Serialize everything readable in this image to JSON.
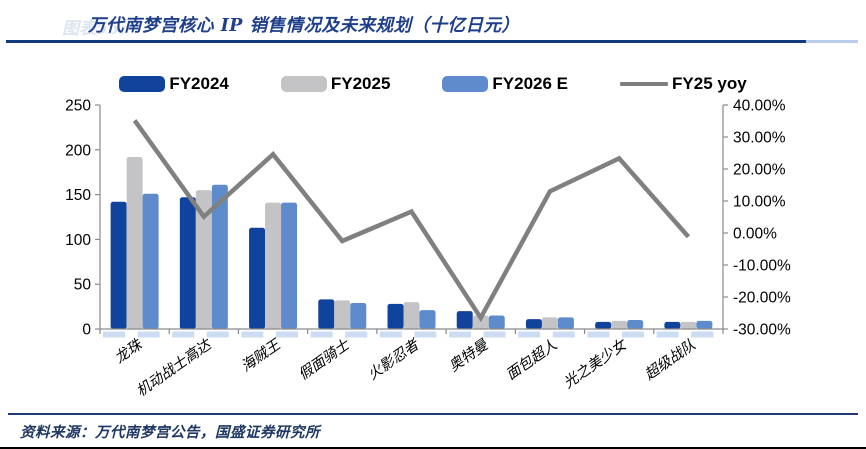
{
  "header": {
    "figure_label": "图表55:",
    "title": "万代南梦宫核心 IP 销售情况及未来规划（十亿日元）"
  },
  "footer": {
    "source": "资料来源：万代南梦宫公告，国盛证券研究所"
  },
  "colors": {
    "title_navy": "#1f3f8a",
    "rule_navy": "#123a7d",
    "fy2024_bar": "#10449c",
    "fy2025_bar": "#c4c4c6",
    "fy2026_bar": "#5e8bcb",
    "yoy_line": "#808080",
    "axis_gray": "#8a8a8a",
    "highlight_blue": "#cbdcf3"
  },
  "chart_data": {
    "type": "bar",
    "title": "万代南梦宫核心 IP 销售情况及未来规划（十亿日元）",
    "categories": [
      "龙珠",
      "机动战士高达",
      "海贼王",
      "假面骑士",
      "火影忍者",
      "奥特曼",
      "面包超人",
      "光之美少女",
      "超级战队"
    ],
    "series": [
      {
        "name": "FY2024",
        "type": "bar",
        "axis": "left",
        "color": "#10449c",
        "values": [
          142,
          147,
          113,
          33,
          28,
          20,
          11,
          8,
          8
        ]
      },
      {
        "name": "FY2025",
        "type": "bar",
        "axis": "left",
        "color": "#c4c4c6",
        "values": [
          192,
          155,
          141,
          32,
          30,
          15,
          13,
          9,
          8
        ]
      },
      {
        "name": "FY2026 E",
        "type": "bar",
        "axis": "left",
        "color": "#5e8bcb",
        "values": [
          151,
          161,
          141,
          29,
          21,
          15,
          13,
          10,
          9
        ]
      },
      {
        "name": "FY25 yoy",
        "type": "line",
        "axis": "right",
        "color": "#808080",
        "values": [
          35.2,
          5.1,
          24.6,
          -2.5,
          6.7,
          -26.5,
          13.0,
          23.3,
          -1.2
        ]
      }
    ],
    "left_axis": {
      "min": 0,
      "max": 250,
      "step": 50,
      "ticks": [
        "250",
        "200",
        "150",
        "100",
        "50",
        "0"
      ]
    },
    "right_axis": {
      "min": -30,
      "max": 40,
      "step": 10,
      "ticks": [
        "40.00%",
        "30.00%",
        "20.00%",
        "10.00%",
        "0.00%",
        "-10.00%",
        "-20.00%",
        "-30.00%"
      ]
    },
    "legend_position": "top",
    "grid": false
  }
}
